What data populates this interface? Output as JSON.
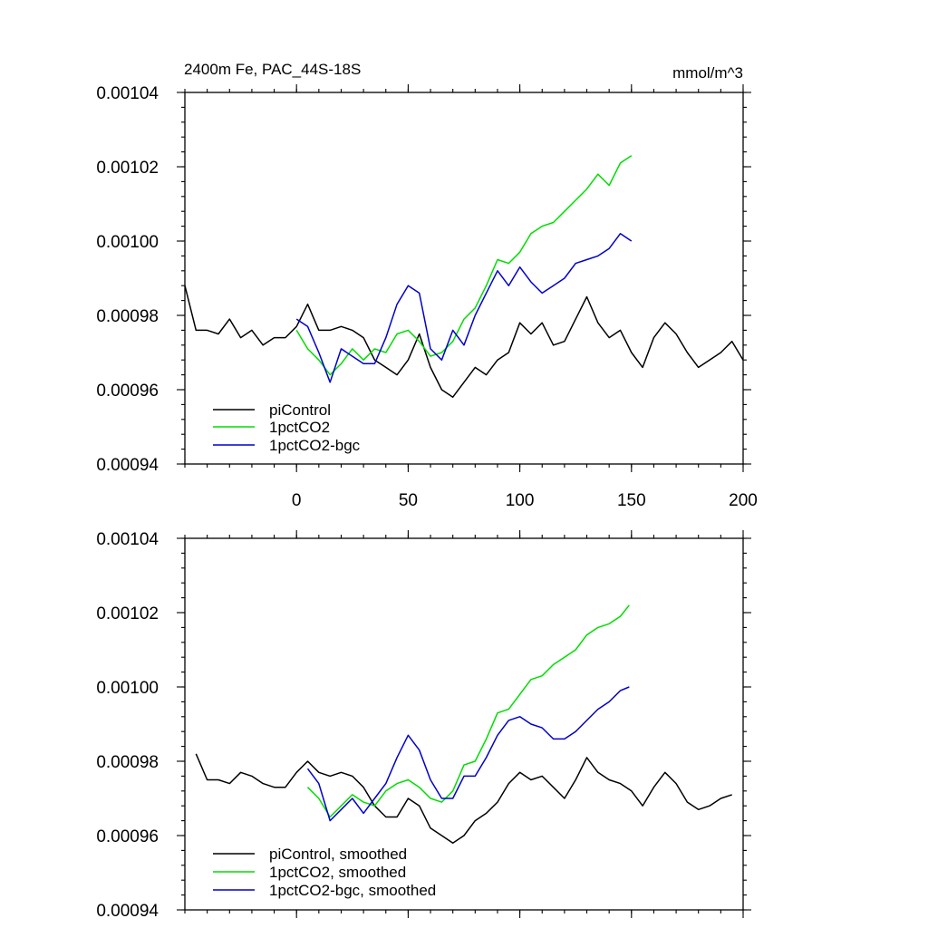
{
  "figure": {
    "title_left": "2400m Fe, PAC_44S-18S",
    "title_right": "mmol/m^3"
  },
  "chart_data": [
    {
      "type": "line",
      "panel": "top",
      "ylim": [
        0.00094,
        0.00104
      ],
      "xlim": [
        -50,
        200
      ],
      "yticks": [
        "0.00094",
        "0.00096",
        "0.00098",
        "0.00100",
        "0.00102",
        "0.00104"
      ],
      "xticks": [
        "0",
        "50",
        "100",
        "150",
        "200"
      ],
      "legend_position": "bottom-left",
      "colors": {
        "piControl": "#000000",
        "1pctCO2": "#00dd00",
        "1pctCO2-bgc": "#0000cc"
      },
      "series": [
        {
          "name": "piControl",
          "x": [
            -50,
            -45,
            -40,
            -35,
            -30,
            -25,
            -20,
            -15,
            -10,
            -5,
            0,
            5,
            10,
            15,
            20,
            25,
            30,
            35,
            40,
            45,
            50,
            55,
            60,
            65,
            70,
            75,
            80,
            85,
            90,
            95,
            100,
            105,
            110,
            115,
            120,
            125,
            130,
            135,
            140,
            145,
            150,
            155,
            160,
            165,
            170,
            175,
            180,
            185,
            190,
            195,
            200
          ],
          "values": [
            0.000988,
            0.000976,
            0.000976,
            0.000975,
            0.000979,
            0.000974,
            0.000976,
            0.000972,
            0.000974,
            0.000974,
            0.000977,
            0.000983,
            0.000976,
            0.000976,
            0.000977,
            0.000976,
            0.000974,
            0.000968,
            0.000966,
            0.000964,
            0.000968,
            0.000975,
            0.000966,
            0.00096,
            0.000958,
            0.000962,
            0.000966,
            0.000964,
            0.000968,
            0.00097,
            0.000978,
            0.000975,
            0.000978,
            0.000972,
            0.000973,
            0.000979,
            0.000985,
            0.000978,
            0.000974,
            0.000976,
            0.00097,
            0.000966,
            0.000974,
            0.000978,
            0.000975,
            0.00097,
            0.000966,
            0.000968,
            0.00097,
            0.000973,
            0.000968
          ]
        },
        {
          "name": "1pctCO2",
          "x": [
            0,
            5,
            10,
            15,
            20,
            25,
            30,
            35,
            40,
            45,
            50,
            55,
            60,
            65,
            70,
            75,
            80,
            85,
            90,
            95,
            100,
            105,
            110,
            115,
            120,
            125,
            130,
            135,
            140,
            145,
            150
          ],
          "values": [
            0.000976,
            0.000971,
            0.000968,
            0.000964,
            0.000967,
            0.000971,
            0.000968,
            0.000971,
            0.00097,
            0.000975,
            0.000976,
            0.000973,
            0.000969,
            0.00097,
            0.000973,
            0.000979,
            0.000982,
            0.000988,
            0.000995,
            0.000994,
            0.000997,
            0.001002,
            0.001004,
            0.001005,
            0.001008,
            0.001011,
            0.001014,
            0.001018,
            0.001015,
            0.001021,
            0.001023
          ]
        },
        {
          "name": "1pctCO2-bgc",
          "x": [
            0,
            5,
            10,
            15,
            20,
            25,
            30,
            35,
            40,
            45,
            50,
            55,
            60,
            65,
            70,
            75,
            80,
            85,
            90,
            95,
            100,
            105,
            110,
            115,
            120,
            125,
            130,
            135,
            140,
            145,
            150
          ],
          "values": [
            0.000979,
            0.000977,
            0.00097,
            0.000962,
            0.000971,
            0.000969,
            0.000967,
            0.000967,
            0.000974,
            0.000983,
            0.000988,
            0.000986,
            0.000971,
            0.000968,
            0.000976,
            0.000972,
            0.00098,
            0.000986,
            0.000992,
            0.000988,
            0.000993,
            0.000989,
            0.000986,
            0.000988,
            0.00099,
            0.000994,
            0.000995,
            0.000996,
            0.000998,
            0.001002,
            0.001
          ]
        }
      ]
    },
    {
      "type": "line",
      "panel": "bottom",
      "ylim": [
        0.00094,
        0.00104
      ],
      "xlim": [
        -50,
        200
      ],
      "yticks": [
        "0.00094",
        "0.00096",
        "0.00098",
        "0.00100",
        "0.00102",
        "0.00104"
      ],
      "legend_position": "bottom-left",
      "series": [
        {
          "name": "piControl, smoothed",
          "x": [
            -45,
            -40,
            -35,
            -30,
            -25,
            -20,
            -15,
            -10,
            -5,
            0,
            5,
            10,
            15,
            20,
            25,
            30,
            35,
            40,
            45,
            50,
            55,
            60,
            65,
            70,
            75,
            80,
            85,
            90,
            95,
            100,
            105,
            110,
            115,
            120,
            125,
            130,
            135,
            140,
            145,
            150,
            155,
            160,
            165,
            170,
            175,
            180,
            185,
            190,
            195
          ],
          "values": [
            0.000982,
            0.000975,
            0.000975,
            0.000974,
            0.000977,
            0.000976,
            0.000974,
            0.000973,
            0.000973,
            0.000977,
            0.00098,
            0.000977,
            0.000976,
            0.000977,
            0.000976,
            0.000973,
            0.000968,
            0.000965,
            0.000965,
            0.00097,
            0.000968,
            0.000962,
            0.00096,
            0.000958,
            0.00096,
            0.000964,
            0.000966,
            0.000969,
            0.000974,
            0.000977,
            0.000975,
            0.000976,
            0.000973,
            0.00097,
            0.000975,
            0.000981,
            0.000977,
            0.000975,
            0.000974,
            0.000972,
            0.000968,
            0.000973,
            0.000977,
            0.000974,
            0.000969,
            0.000967,
            0.000968,
            0.00097,
            0.000971
          ]
        },
        {
          "name": "1pctCO2, smoothed",
          "x": [
            5,
            10,
            15,
            20,
            25,
            30,
            35,
            40,
            45,
            50,
            55,
            60,
            65,
            70,
            75,
            80,
            85,
            90,
            95,
            100,
            105,
            110,
            115,
            120,
            125,
            130,
            135,
            140,
            145,
            149
          ],
          "values": [
            0.000973,
            0.00097,
            0.000965,
            0.000968,
            0.000971,
            0.000969,
            0.000968,
            0.000972,
            0.000974,
            0.000975,
            0.000973,
            0.00097,
            0.000969,
            0.000972,
            0.000979,
            0.00098,
            0.000986,
            0.000993,
            0.000994,
            0.000998,
            0.001002,
            0.001003,
            0.001006,
            0.001008,
            0.00101,
            0.001014,
            0.001016,
            0.001017,
            0.001019,
            0.001022
          ]
        },
        {
          "name": "1pctCO2-bgc, smoothed",
          "x": [
            5,
            10,
            15,
            20,
            25,
            30,
            35,
            40,
            45,
            50,
            55,
            60,
            65,
            70,
            75,
            80,
            85,
            90,
            95,
            100,
            105,
            110,
            115,
            120,
            125,
            130,
            135,
            140,
            145,
            149
          ],
          "values": [
            0.000978,
            0.000974,
            0.000964,
            0.000967,
            0.00097,
            0.000966,
            0.00097,
            0.000974,
            0.000981,
            0.000987,
            0.000983,
            0.000975,
            0.00097,
            0.00097,
            0.000976,
            0.000976,
            0.000981,
            0.000987,
            0.000991,
            0.000992,
            0.00099,
            0.000989,
            0.000986,
            0.000986,
            0.000988,
            0.000991,
            0.000994,
            0.000996,
            0.000999,
            0.001
          ]
        }
      ]
    }
  ],
  "legends": {
    "top": [
      "piControl",
      "1pctCO2",
      "1pctCO2-bgc"
    ],
    "bottom": [
      "piControl, smoothed",
      "1pctCO2, smoothed",
      "1pctCO2-bgc, smoothed"
    ]
  }
}
